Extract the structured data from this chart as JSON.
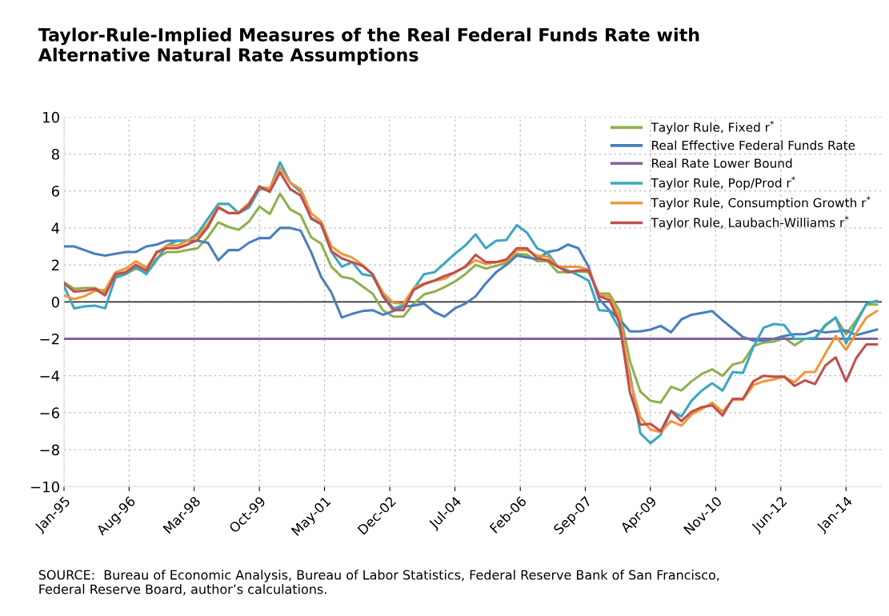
{
  "chart_data": {
    "type": "line",
    "title": "Taylor-Rule-Implied Measures of the Real Federal Funds Rate with\nAlternative Natural Rate Assumptions",
    "x": [
      "1995-01",
      "1995-04",
      "1995-07",
      "1995-10",
      "1996-01",
      "1996-04",
      "1996-07",
      "1996-10",
      "1997-01",
      "1997-04",
      "1997-07",
      "1997-10",
      "1998-01",
      "1998-04",
      "1998-07",
      "1998-10",
      "1999-01",
      "1999-04",
      "1999-07",
      "1999-10",
      "2000-01",
      "2000-04",
      "2000-07",
      "2000-10",
      "2001-01",
      "2001-04",
      "2001-07",
      "2001-10",
      "2002-01",
      "2002-04",
      "2002-07",
      "2002-10",
      "2003-01",
      "2003-04",
      "2003-07",
      "2003-10",
      "2004-01",
      "2004-04",
      "2004-07",
      "2004-10",
      "2005-01",
      "2005-04",
      "2005-07",
      "2005-10",
      "2006-01",
      "2006-04",
      "2006-07",
      "2006-10",
      "2007-01",
      "2007-04",
      "2007-07",
      "2007-10",
      "2008-01",
      "2008-04",
      "2008-07",
      "2008-10",
      "2009-01",
      "2009-04",
      "2009-07",
      "2009-10",
      "2010-01",
      "2010-04",
      "2010-07",
      "2010-10",
      "2011-01",
      "2011-04",
      "2011-07",
      "2011-10",
      "2012-01",
      "2012-04",
      "2012-07",
      "2012-10",
      "2013-01",
      "2013-04",
      "2013-07",
      "2013-10",
      "2014-01",
      "2014-04",
      "2014-07",
      "2014-10"
    ],
    "series": [
      {
        "name": "Taylor Rule, Fixed r$^{*}$",
        "color": "#8fb04f",
        "values": [
          1.05,
          0.7,
          0.75,
          0.75,
          0.5,
          1.4,
          1.5,
          1.8,
          1.6,
          2.35,
          2.7,
          2.7,
          2.8,
          2.9,
          3.5,
          4.3,
          4.05,
          3.9,
          4.35,
          5.15,
          4.75,
          5.85,
          5.0,
          4.7,
          3.5,
          3.15,
          1.9,
          1.35,
          1.25,
          0.85,
          0.45,
          -0.45,
          -0.8,
          -0.8,
          -0.1,
          0.4,
          0.55,
          0.8,
          1.1,
          1.5,
          2.0,
          1.8,
          1.95,
          2.1,
          2.6,
          2.55,
          2.2,
          2.2,
          1.6,
          1.6,
          1.65,
          1.6,
          0.45,
          0.45,
          -0.5,
          -3.2,
          -4.85,
          -5.35,
          -5.45,
          -4.6,
          -4.8,
          -4.3,
          -3.9,
          -3.65,
          -4.0,
          -3.4,
          -3.25,
          -2.4,
          -2.2,
          -2.15,
          -1.95,
          -2.35,
          -2.0,
          -2.0,
          -1.3,
          -0.85,
          -1.75,
          -1.0,
          -0.15,
          -0.15
        ]
      },
      {
        "name": "Real Effective Federal Funds Rate",
        "color": "#4a7fbb",
        "values": [
          3.0,
          3.0,
          2.8,
          2.6,
          2.5,
          2.6,
          2.7,
          2.7,
          3.0,
          3.1,
          3.3,
          3.3,
          3.3,
          3.3,
          3.2,
          2.25,
          2.8,
          2.8,
          3.2,
          3.45,
          3.45,
          4.0,
          4.0,
          3.85,
          2.7,
          1.35,
          0.5,
          -0.85,
          -0.65,
          -0.5,
          -0.45,
          -0.7,
          -0.5,
          -0.25,
          -0.2,
          -0.1,
          -0.55,
          -0.8,
          -0.35,
          -0.1,
          0.3,
          1.0,
          1.6,
          2.0,
          2.5,
          2.4,
          2.3,
          2.7,
          2.8,
          3.1,
          2.9,
          1.9,
          0.15,
          -0.45,
          -0.95,
          -1.6,
          -1.6,
          -1.5,
          -1.3,
          -1.65,
          -0.95,
          -0.7,
          -0.6,
          -0.5,
          -1.0,
          -1.45,
          -1.9,
          -2.1,
          -2.1,
          -2.0,
          -1.85,
          -1.75,
          -1.75,
          -1.55,
          -1.65,
          -1.6,
          -1.55,
          -1.8,
          -1.65,
          -1.5
        ]
      },
      {
        "name": "Real Rate Lower Bound",
        "color": "#8064a2",
        "x": [
          "1995-01",
          "2014-10"
        ],
        "values": [
          -2,
          -2
        ]
      },
      {
        "name": "Taylor Rule, Pop/Prod r$^{*}$",
        "color": "#3ba7c1",
        "values": [
          0.85,
          -0.35,
          -0.25,
          -0.2,
          -0.35,
          1.3,
          1.5,
          1.9,
          1.5,
          2.25,
          3.05,
          3.3,
          3.3,
          3.7,
          4.5,
          5.3,
          5.3,
          4.8,
          5.1,
          6.1,
          6.1,
          7.55,
          6.45,
          5.95,
          4.5,
          4.2,
          2.7,
          1.9,
          2.15,
          1.5,
          1.4,
          0.4,
          -0.35,
          -0.2,
          0.7,
          1.5,
          1.6,
          2.1,
          2.6,
          3.05,
          3.65,
          2.9,
          3.3,
          3.35,
          4.15,
          3.75,
          2.9,
          2.65,
          1.9,
          1.7,
          1.45,
          1.15,
          -0.45,
          -0.5,
          -1.45,
          -3.9,
          -7.1,
          -7.65,
          -7.2,
          -5.9,
          -6.2,
          -5.35,
          -4.8,
          -4.4,
          -4.8,
          -3.8,
          -3.85,
          -2.45,
          -1.4,
          -1.2,
          -1.25,
          -2.0,
          -2.0,
          -1.95,
          -1.25,
          -0.85,
          -2.25,
          -1.15,
          -0.1,
          0.05
        ]
      },
      {
        "name": "Taylor Rule, Consumption Growth r$^{*}$",
        "color": "#f0963c",
        "values": [
          0.35,
          0.15,
          0.3,
          0.6,
          0.65,
          1.6,
          1.8,
          2.2,
          1.85,
          2.6,
          3.05,
          3.05,
          3.3,
          3.55,
          4.2,
          5.15,
          4.8,
          4.85,
          5.35,
          6.2,
          6.15,
          7.25,
          6.45,
          6.1,
          4.8,
          4.35,
          3.0,
          2.6,
          2.4,
          2.0,
          1.5,
          0.5,
          -0.05,
          -0.1,
          0.75,
          1.0,
          1.15,
          1.25,
          1.6,
          1.9,
          2.25,
          2.05,
          2.15,
          2.2,
          2.8,
          2.8,
          2.5,
          2.45,
          1.9,
          1.9,
          1.9,
          1.75,
          0.35,
          0.3,
          -0.85,
          -4.2,
          -6.25,
          -6.9,
          -7.05,
          -6.45,
          -6.7,
          -6.1,
          -5.8,
          -5.45,
          -5.95,
          -5.3,
          -5.3,
          -4.5,
          -4.3,
          -4.2,
          -4.05,
          -4.35,
          -3.8,
          -3.8,
          -2.8,
          -1.85,
          -2.6,
          -1.7,
          -0.85,
          -0.5
        ]
      },
      {
        "name": "Taylor Rule, Laubach-Williams r$^{*}$",
        "color": "#c0504d",
        "values": [
          1.0,
          0.55,
          0.6,
          0.7,
          0.35,
          1.5,
          1.6,
          2.0,
          1.7,
          2.7,
          2.9,
          2.9,
          3.1,
          3.35,
          4.05,
          5.1,
          4.8,
          4.8,
          5.25,
          6.25,
          5.95,
          7.0,
          6.1,
          5.75,
          4.55,
          4.2,
          2.75,
          2.35,
          2.15,
          1.95,
          1.5,
          0.3,
          -0.45,
          -0.45,
          0.65,
          0.95,
          1.15,
          1.4,
          1.6,
          1.9,
          2.55,
          2.15,
          2.15,
          2.3,
          2.9,
          2.9,
          2.35,
          2.25,
          1.9,
          1.6,
          1.7,
          1.7,
          0.3,
          0.1,
          -1.15,
          -4.9,
          -6.65,
          -6.6,
          -7.0,
          -5.9,
          -6.45,
          -5.95,
          -5.7,
          -5.6,
          -6.15,
          -5.25,
          -5.25,
          -4.3,
          -4.0,
          -4.05,
          -4.05,
          -4.55,
          -4.25,
          -4.45,
          -3.45,
          -3.0,
          -4.3,
          -3.05,
          -2.3,
          -2.3
        ]
      }
    ],
    "ylim": [
      -10,
      10
    ],
    "yticks": [
      {
        "value": -10,
        "label": "−10"
      },
      {
        "value": -8,
        "label": "−8"
      },
      {
        "value": -6,
        "label": "−6"
      },
      {
        "value": -4,
        "label": "−4"
      },
      {
        "value": -2,
        "label": "−2"
      },
      0,
      2,
      4,
      6,
      8,
      10
    ],
    "xlim": [
      "1995-01-01",
      "2014-11-15"
    ],
    "xticks": [
      {
        "value": "1995-01",
        "label": "Jan-95"
      },
      {
        "value": "1996-08",
        "label": "Aug-96"
      },
      {
        "value": "1998-03",
        "label": "Mar-98"
      },
      {
        "value": "1999-10",
        "label": "Oct-99"
      },
      {
        "value": "2001-05",
        "label": "May-01"
      },
      {
        "value": "2002-12",
        "label": "Dec-02"
      },
      {
        "value": "2004-07",
        "label": "Jul-04"
      },
      {
        "value": "2006-02",
        "label": "Feb-06"
      },
      {
        "value": "2007-09",
        "label": "Sep-07"
      },
      {
        "value": "2009-04",
        "label": "Apr-09"
      },
      {
        "value": "2010-11",
        "label": "Nov-10"
      },
      {
        "value": "2012-06",
        "label": "Jun-12"
      },
      {
        "value": "2014-01",
        "label": "Jan-14"
      }
    ],
    "ref_lines": [
      {
        "axis": "y",
        "value": 0,
        "color": "#333333",
        "line_style": "solid"
      }
    ],
    "grid": true,
    "legend": "top right",
    "marker": "none",
    "line_style": "solid",
    "annotations": [
      "SOURCE:  Bureau of Economic Analysis, Bureau of Labor Statistics, Federal Reserve Bank of San Francisco,\nFederal Reserve Board, author’s calculations."
    ]
  }
}
